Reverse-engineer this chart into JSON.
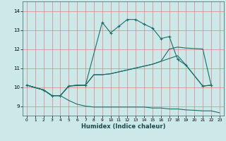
{
  "xlabel": "Humidex (Indice chaleur)",
  "bg_color": "#cce8e8",
  "grid_color": "#e08080",
  "line_color": "#1a6e6a",
  "xlim": [
    -0.5,
    23.5
  ],
  "ylim": [
    8.5,
    14.5
  ],
  "xticks": [
    0,
    1,
    2,
    3,
    4,
    5,
    6,
    7,
    8,
    9,
    10,
    11,
    12,
    13,
    14,
    15,
    16,
    17,
    18,
    19,
    20,
    21,
    22,
    23
  ],
  "yticks": [
    9,
    10,
    11,
    12,
    13,
    14
  ],
  "line1": {
    "x": [
      0,
      2,
      3,
      4,
      5,
      7,
      9,
      10,
      11,
      12,
      13,
      14,
      15,
      16,
      17,
      18,
      19,
      21,
      22
    ],
    "y": [
      10.1,
      9.85,
      9.55,
      9.55,
      10.05,
      10.1,
      13.4,
      12.85,
      13.2,
      13.55,
      13.55,
      13.3,
      13.1,
      12.55,
      12.65,
      11.45,
      11.15,
      10.05,
      10.1
    ],
    "marker": true
  },
  "line2": {
    "x": [
      0,
      2,
      3,
      4,
      5,
      6,
      7,
      8,
      9,
      10,
      11,
      12,
      13,
      14,
      15,
      16,
      17,
      18,
      19,
      21,
      22
    ],
    "y": [
      10.1,
      9.85,
      9.55,
      9.55,
      10.05,
      10.1,
      10.1,
      10.65,
      10.65,
      10.7,
      10.8,
      10.9,
      11.0,
      11.1,
      11.2,
      11.35,
      12.0,
      12.1,
      12.05,
      12.0,
      10.1
    ],
    "marker": false
  },
  "line3": {
    "x": [
      0,
      2,
      3,
      4,
      5,
      6,
      7,
      8,
      9,
      10,
      11,
      12,
      13,
      14,
      15,
      16,
      17,
      18,
      19,
      21,
      22
    ],
    "y": [
      10.1,
      9.85,
      9.55,
      9.55,
      10.05,
      10.1,
      10.1,
      10.65,
      10.65,
      10.7,
      10.8,
      10.9,
      11.0,
      11.1,
      11.2,
      11.35,
      11.5,
      11.65,
      11.15,
      10.05,
      10.1
    ],
    "marker": false
  },
  "line4": {
    "x": [
      0,
      2,
      3,
      4,
      5,
      6,
      7,
      8,
      9,
      10,
      11,
      12,
      13,
      14,
      15,
      16,
      17,
      18,
      19,
      20,
      21,
      22,
      23
    ],
    "y": [
      10.1,
      9.85,
      9.55,
      9.55,
      9.3,
      9.1,
      9.0,
      8.95,
      8.95,
      8.95,
      8.95,
      8.95,
      8.95,
      8.95,
      8.9,
      8.9,
      8.85,
      8.85,
      8.8,
      8.78,
      8.75,
      8.75,
      8.65
    ],
    "marker": false
  }
}
